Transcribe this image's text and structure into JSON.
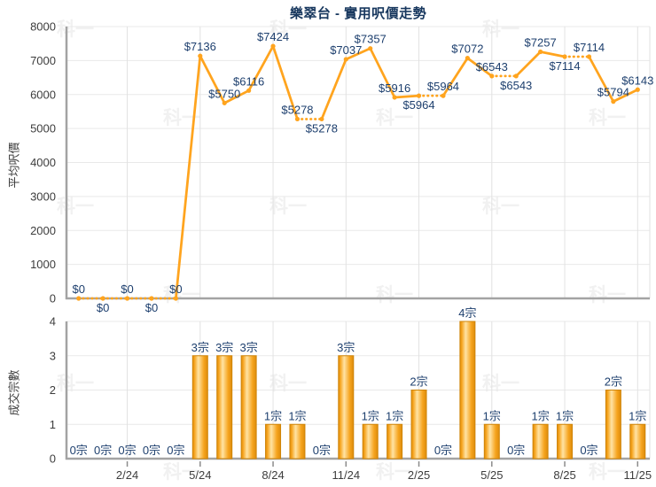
{
  "title": "樂翠台 - 實用呎價走勢",
  "watermark": {
    "text": "科一"
  },
  "colors": {
    "line": "#ffa41e",
    "marker": "#ffa41e",
    "bar_dark": "#dd8c0c",
    "bar_mid": "#f6a41e",
    "bar_light": "#ffe3a4",
    "bar_edge": "#cf8408",
    "label_navy": "#1d3f6e",
    "title_navy": "#17375e",
    "axis_text": "#3d3d3d",
    "grid": "#e9e9e9",
    "grid_vertical": "#e2e2e2",
    "axis_line": "#a3a3a3",
    "tick": "#8c8c8c",
    "watermark": "#f1f1f1"
  },
  "x_axis": {
    "n_points": 24,
    "tick_labels": [
      "2/24",
      "5/24",
      "8/24",
      "11/24",
      "2/25",
      "5/25",
      "8/25",
      "11/25"
    ],
    "tick_indices": [
      2,
      5,
      8,
      11,
      14,
      17,
      20,
      23
    ]
  },
  "chart_data": [
    {
      "type": "line",
      "name": "price-trend",
      "title": "樂翠台 - 實用呎價走勢",
      "ylabel": "平均呎價",
      "ylim": [
        0,
        8000
      ],
      "ytick_step": 1000,
      "grid": "on",
      "legend": "none",
      "values": [
        0,
        0,
        0,
        0,
        0,
        7136,
        5750,
        6116,
        7424,
        5278,
        5278,
        7037,
        7357,
        5916,
        5964,
        5964,
        7072,
        6543,
        6543,
        7257,
        7114,
        7114,
        5794,
        6143
      ],
      "point_labels": [
        "$0",
        "$0",
        "$0",
        "$0",
        "$0",
        "$7136",
        "$5750",
        "$6116",
        "$7424",
        "$5278",
        "$5278",
        "$7037",
        "$7357",
        "$5916",
        "$5964",
        "$5964",
        "$7072",
        "$6543",
        "$6543",
        "$7257",
        "$7114",
        "$7114",
        "$5794",
        "$6143"
      ],
      "point_label_positions": [
        "above",
        "below",
        "above",
        "below",
        "above",
        "above",
        "above",
        "above",
        "above",
        "above",
        "below",
        "above",
        "above",
        "above",
        "below",
        "above",
        "above",
        "above",
        "below",
        "above",
        "below",
        "above",
        "above",
        "above"
      ],
      "dotted_between_equal_values": true
    },
    {
      "type": "bar",
      "name": "transaction-count",
      "ylabel": "成交宗數",
      "ylim": [
        0,
        4
      ],
      "ytick_step": 1,
      "grid": "on",
      "legend": "none",
      "values": [
        0,
        0,
        0,
        0,
        0,
        3,
        3,
        3,
        1,
        1,
        0,
        3,
        1,
        1,
        2,
        0,
        4,
        1,
        0,
        1,
        1,
        0,
        2,
        1
      ],
      "point_labels": [
        "0宗",
        "0宗",
        "0宗",
        "0宗",
        "0宗",
        "3宗",
        "3宗",
        "3宗",
        "1宗",
        "1宗",
        "0宗",
        "3宗",
        "1宗",
        "1宗",
        "2宗",
        "0宗",
        "4宗",
        "1宗",
        "0宗",
        "1宗",
        "1宗",
        "0宗",
        "2宗",
        "1宗"
      ]
    }
  ]
}
